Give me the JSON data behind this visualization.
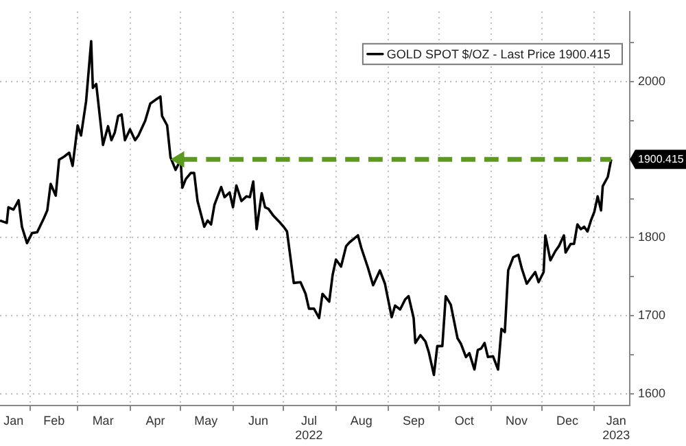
{
  "chart_data": {
    "type": "line",
    "x": [
      "2022-01-14",
      "2022-01-18",
      "2022-01-19",
      "2022-01-22",
      "2022-01-25",
      "2022-01-27",
      "2022-01-30",
      "2022-02-02",
      "2022-02-05",
      "2022-02-09",
      "2022-02-11",
      "2022-02-13",
      "2022-02-16",
      "2022-02-18",
      "2022-02-21",
      "2022-02-24",
      "2022-02-26",
      "2022-03-01",
      "2022-03-03",
      "2022-03-06",
      "2022-03-09",
      "2022-03-10",
      "2022-03-12",
      "2022-03-16",
      "2022-03-19",
      "2022-03-21",
      "2022-03-23",
      "2022-03-25",
      "2022-03-27",
      "2022-03-29",
      "2022-04-01",
      "2022-04-04",
      "2022-04-06",
      "2022-04-10",
      "2022-04-13",
      "2022-04-17",
      "2022-04-19",
      "2022-04-20",
      "2022-04-23",
      "2022-04-25",
      "2022-04-28",
      "2022-05-01",
      "2022-05-02",
      "2022-05-04",
      "2022-05-07",
      "2022-05-09",
      "2022-05-11",
      "2022-05-15",
      "2022-05-17",
      "2022-05-19",
      "2022-05-21",
      "2022-05-25",
      "2022-05-27",
      "2022-05-30",
      "2022-06-01",
      "2022-06-03",
      "2022-06-06",
      "2022-06-09",
      "2022-06-11",
      "2022-06-13",
      "2022-06-15",
      "2022-06-18",
      "2022-06-20",
      "2022-06-22",
      "2022-06-25",
      "2022-06-29",
      "2022-07-01",
      "2022-07-03",
      "2022-07-07",
      "2022-07-11",
      "2022-07-14",
      "2022-07-16",
      "2022-07-19",
      "2022-07-22",
      "2022-07-24",
      "2022-07-28",
      "2022-07-30",
      "2022-08-01",
      "2022-08-04",
      "2022-08-07",
      "2022-08-09",
      "2022-08-14",
      "2022-08-16",
      "2022-08-20",
      "2022-08-23",
      "2022-08-27",
      "2022-08-30",
      "2022-09-03",
      "2022-09-05",
      "2022-09-08",
      "2022-09-11",
      "2022-09-13",
      "2022-09-16",
      "2022-09-17",
      "2022-09-20",
      "2022-09-23",
      "2022-09-25",
      "2022-09-28",
      "2022-09-30",
      "2022-10-03",
      "2022-10-05",
      "2022-10-08",
      "2022-10-12",
      "2022-10-14",
      "2022-10-17",
      "2022-10-19",
      "2022-10-22",
      "2022-10-24",
      "2022-10-26",
      "2022-10-28",
      "2022-10-30",
      "2022-11-02",
      "2022-11-05",
      "2022-11-07",
      "2022-11-09",
      "2022-11-11",
      "2022-11-14",
      "2022-11-17",
      "2022-11-19",
      "2022-11-22",
      "2022-11-24",
      "2022-11-27",
      "2022-11-29",
      "2022-12-02",
      "2022-12-03",
      "2022-12-06",
      "2022-12-09",
      "2022-12-11",
      "2022-12-14",
      "2022-12-15",
      "2022-12-18",
      "2022-12-20",
      "2022-12-22",
      "2022-12-24",
      "2022-12-26",
      "2022-12-28",
      "2022-12-30",
      "2023-01-01",
      "2023-01-03",
      "2023-01-05",
      "2023-01-06",
      "2023-01-09",
      "2023-01-11"
    ],
    "series": [
      {
        "name": "GOLD SPOT $/OZ - Last Price 1900.415",
        "color": "#000000",
        "values": [
          1822,
          1819,
          1839,
          1836,
          1848,
          1814,
          1793,
          1806,
          1807,
          1825,
          1835,
          1869,
          1854,
          1900,
          1904,
          1909,
          1892,
          1944,
          1931,
          1975,
          2052,
          1992,
          1997,
          1919,
          1943,
          1925,
          1935,
          1956,
          1958,
          1925,
          1939,
          1925,
          1931,
          1950,
          1972,
          1978,
          1981,
          1956,
          1944,
          1903,
          1887,
          1900,
          1864,
          1875,
          1883,
          1883,
          1847,
          1814,
          1822,
          1817,
          1842,
          1865,
          1852,
          1858,
          1839,
          1867,
          1847,
          1853,
          1852,
          1872,
          1811,
          1857,
          1839,
          1837,
          1828,
          1819,
          1814,
          1808,
          1742,
          1743,
          1728,
          1709,
          1709,
          1697,
          1728,
          1718,
          1752,
          1772,
          1763,
          1789,
          1794,
          1803,
          1787,
          1761,
          1739,
          1758,
          1741,
          1698,
          1713,
          1708,
          1721,
          1725,
          1697,
          1665,
          1675,
          1667,
          1653,
          1624,
          1661,
          1661,
          1725,
          1714,
          1671,
          1664,
          1647,
          1652,
          1631,
          1656,
          1658,
          1665,
          1647,
          1648,
          1631,
          1683,
          1679,
          1758,
          1775,
          1778,
          1761,
          1741,
          1747,
          1756,
          1743,
          1756,
          1803,
          1771,
          1783,
          1789,
          1803,
          1781,
          1792,
          1792,
          1817,
          1811,
          1814,
          1808,
          1822,
          1833,
          1853,
          1835,
          1866,
          1878,
          1900.415
        ]
      }
    ],
    "xlim": [
      "2022-01-14",
      "2023-01-22"
    ],
    "xticks": [
      {
        "value": "2022-01-22",
        "label": "Jan"
      },
      {
        "value": "2022-02-01",
        "label": null
      },
      {
        "value": "2022-02-15",
        "label": "Feb"
      },
      {
        "value": "2022-03-01",
        "label": null
      },
      {
        "value": "2022-03-16",
        "label": "Mar"
      },
      {
        "value": "2022-04-01",
        "label": null
      },
      {
        "value": "2022-04-16",
        "label": "Apr"
      },
      {
        "value": "2022-05-01",
        "label": null
      },
      {
        "value": "2022-05-16",
        "label": "May"
      },
      {
        "value": "2022-06-01",
        "label": null
      },
      {
        "value": "2022-06-16",
        "label": "Jun"
      },
      {
        "value": "2022-07-01",
        "label": null
      },
      {
        "value": "2022-07-16",
        "label": "Jul\n2022"
      },
      {
        "value": "2022-08-01",
        "label": null
      },
      {
        "value": "2022-08-16",
        "label": "Aug"
      },
      {
        "value": "2022-09-01",
        "label": null
      },
      {
        "value": "2022-09-16",
        "label": "Sep"
      },
      {
        "value": "2022-10-01",
        "label": null
      },
      {
        "value": "2022-10-16",
        "label": "Oct"
      },
      {
        "value": "2022-11-01",
        "label": null
      },
      {
        "value": "2022-11-16",
        "label": "Nov"
      },
      {
        "value": "2022-12-01",
        "label": null
      },
      {
        "value": "2022-12-16",
        "label": "Dec"
      },
      {
        "value": "2023-01-01",
        "label": null
      },
      {
        "value": "2023-01-14",
        "label": "Jan\n2023"
      }
    ],
    "ylim": [
      1585,
      2090
    ],
    "yticks": [
      1600,
      {
        "value": 1650,
        "label": null
      },
      1700,
      {
        "value": 1750,
        "label": null
      },
      1800,
      {
        "value": 1850,
        "label": null
      },
      {
        "value": 1900,
        "label": null
      },
      {
        "value": 1950,
        "label": null
      },
      2000,
      {
        "value": 2050,
        "label": null
      }
    ],
    "ref_lines": [
      {
        "axis": "y",
        "value": 1900.415,
        "label": "1900.415",
        "color": "#5b9a1c",
        "line_style": "dashed"
      }
    ],
    "grid": true,
    "legend": "top right",
    "marker": "none",
    "line_style": "solid"
  }
}
